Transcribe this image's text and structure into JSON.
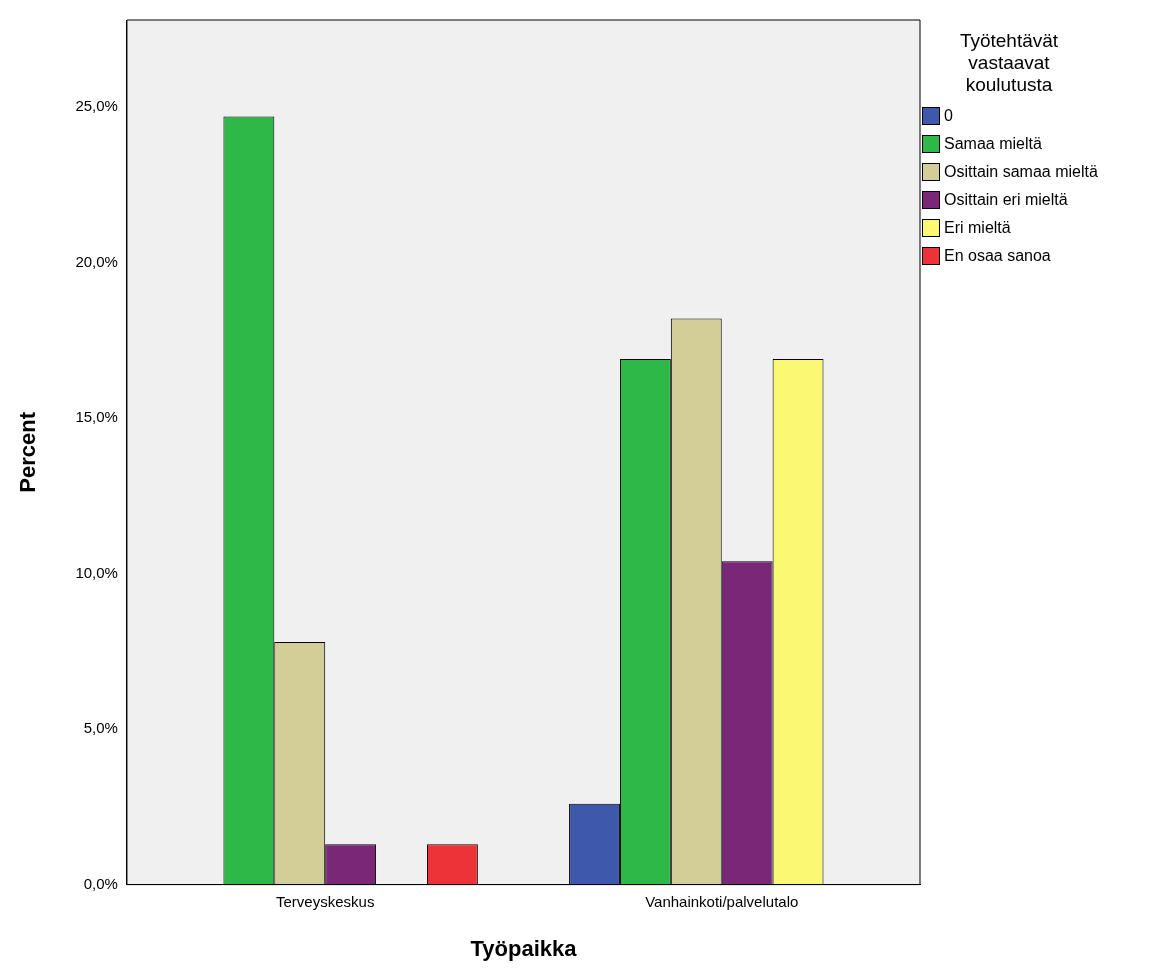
{
  "chart_data": {
    "type": "bar",
    "xlabel": "Työpaikka",
    "ylabel": "Percent",
    "legend_title": "Työtehtävät vastaavat koulutusta",
    "legend": "top right",
    "grid": false,
    "categories": [
      "Terveyskeskus",
      "Vanhainkoti/palvelutalo"
    ],
    "ylim": [
      0,
      27.8
    ],
    "yticks": [
      {
        "value": 0,
        "label": "0,0%"
      },
      {
        "value": 5,
        "label": "5,0%"
      },
      {
        "value": 10,
        "label": "10,0%"
      },
      {
        "value": 15,
        "label": "15,0%"
      },
      {
        "value": 20,
        "label": "20,0%"
      },
      {
        "value": 25,
        "label": "25,0%"
      }
    ],
    "series": [
      {
        "name": "0",
        "color": "#3e58ac",
        "values": [
          null,
          2.6
        ]
      },
      {
        "name": "Samaa mieltä",
        "color": "#2eb848",
        "values": [
          24.7,
          16.9
        ]
      },
      {
        "name": "Osittain samaa mieltä",
        "color": "#d3ce97",
        "values": [
          7.8,
          18.2
        ]
      },
      {
        "name": "Osittain eri mieltä",
        "color": "#7b2778",
        "values": [
          1.3,
          10.4
        ]
      },
      {
        "name": "Eri mieltä",
        "color": "#fbf873",
        "values": [
          null,
          16.9
        ]
      },
      {
        "name": "En osaa sanoa",
        "color": "#ee3338",
        "values": [
          1.3,
          null
        ]
      }
    ]
  }
}
